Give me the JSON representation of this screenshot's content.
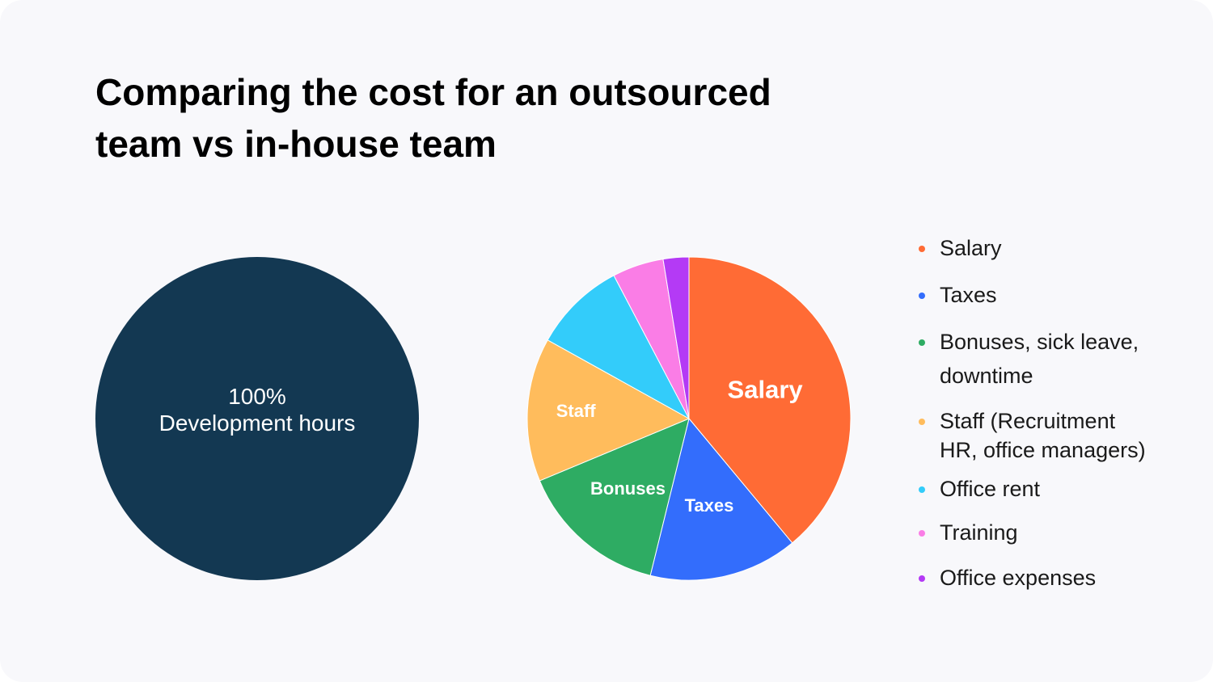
{
  "title": {
    "line1": "Comparing the cost for an outsourced",
    "line2": "team vs in-house team"
  },
  "colors": {
    "background": "#f8f8fb",
    "outsourced": "#133852",
    "salary": "#ff6b35",
    "taxes": "#336dfc",
    "bonuses": "#2eac63",
    "staff": "#ffbc5c",
    "office_rent": "#33ccfa",
    "training": "#fa7de6",
    "office_expenses": "#b43af5"
  },
  "chart_data": [
    {
      "type": "pie",
      "labels": [
        "100%",
        "Development hours"
      ],
      "slices": [
        {
          "key": "development_hours",
          "value": 100,
          "color": "#133852"
        }
      ]
    },
    {
      "type": "pie",
      "start_angle_deg": 0,
      "direction": "clockwise",
      "slices": [
        {
          "key": "salary",
          "label": "Salary",
          "value": 38,
          "color": "#ff6b35",
          "font_size": 31
        },
        {
          "key": "taxes",
          "label": "Taxes",
          "value": 14.5,
          "color": "#336dfc",
          "font_size": 22
        },
        {
          "key": "bonuses",
          "label": "Bonuses",
          "value": 14.5,
          "color": "#2eac63",
          "font_size": 22
        },
        {
          "key": "staff",
          "label": "Staff",
          "value": 14,
          "color": "#ffbc5c",
          "font_size": 22
        },
        {
          "key": "office_rent",
          "label": "",
          "value": 9,
          "color": "#33ccfa",
          "font_size": 22
        },
        {
          "key": "training",
          "label": "",
          "value": 5,
          "color": "#fa7de6",
          "font_size": 22
        },
        {
          "key": "office_expenses",
          "label": "",
          "value": 2.5,
          "color": "#b43af5",
          "font_size": 22
        }
      ],
      "legend": [
        {
          "lines": [
            "Salary"
          ],
          "color": "#ff6b35"
        },
        {
          "lines": [
            "Taxes"
          ],
          "color": "#336dfc"
        },
        {
          "lines": [
            "Bonuses, sick leave,",
            "downtime"
          ],
          "color": "#2eac63"
        },
        {
          "lines": [
            "Staff (Recruitment",
            "HR, office managers)"
          ],
          "color": "#ffbc5c"
        },
        {
          "lines": [
            "Office rent"
          ],
          "color": "#33ccfa"
        },
        {
          "lines": [
            "Training"
          ],
          "color": "#fa7de6"
        },
        {
          "lines": [
            "Office expenses"
          ],
          "color": "#b43af5"
        }
      ],
      "legend_placement": "right"
    }
  ]
}
